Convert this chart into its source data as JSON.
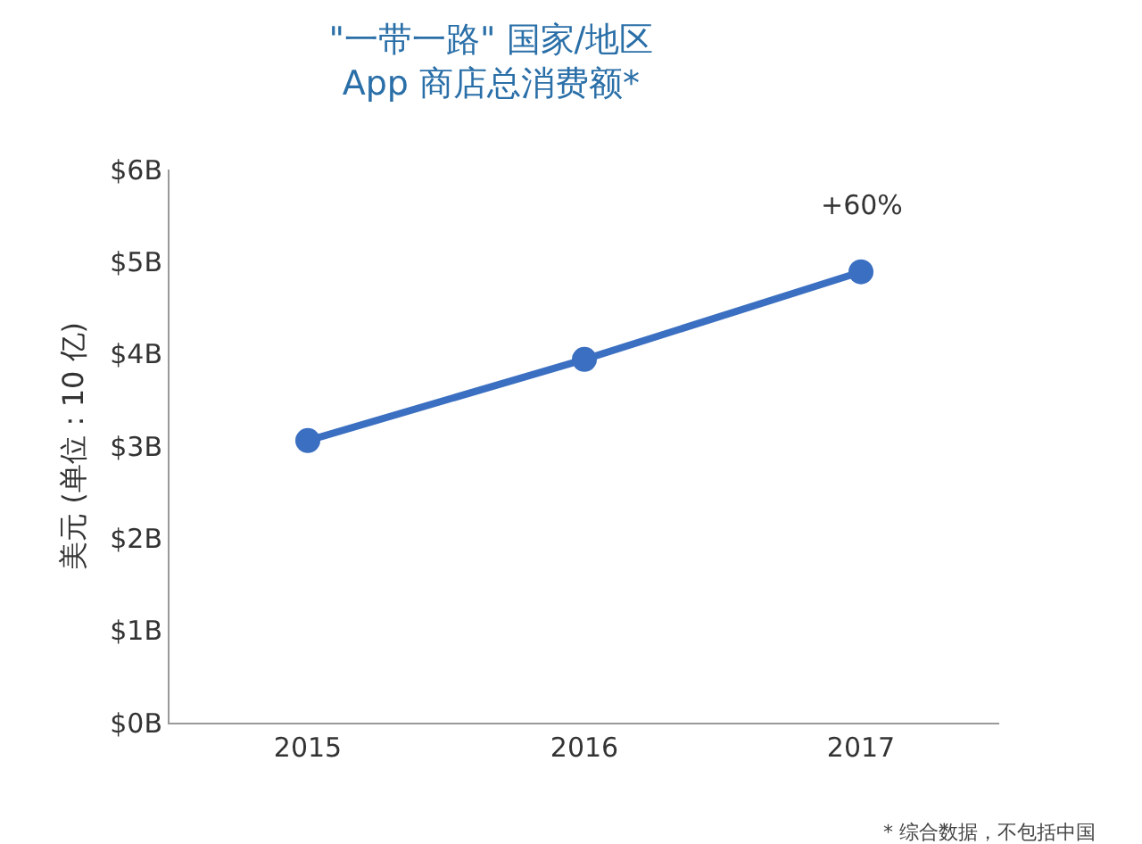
{
  "chart_data": {
    "type": "line",
    "title": "\"一带一路\" 国家/地区",
    "subtitle": "App 商店总消费额*",
    "ylabel": "美元 (单位：10 亿)",
    "categories": [
      "2015",
      "2016",
      "2017"
    ],
    "series": [
      {
        "color": "#3b6fc1",
        "values": [
          3.06,
          3.94,
          4.89
        ]
      }
    ],
    "ylim": [
      0,
      6
    ],
    "yticks": [
      {
        "value": 0,
        "label": "$0B"
      },
      {
        "value": 1,
        "label": "$1B"
      },
      {
        "value": 2,
        "label": "$2B"
      },
      {
        "value": 3,
        "label": "$3B"
      },
      {
        "value": 4,
        "label": "$4B"
      },
      {
        "value": 5,
        "label": "$5B"
      },
      {
        "value": 6,
        "label": "$6B"
      }
    ],
    "annotations": [
      "+60%",
      "* 综合数据，不包括中国"
    ],
    "grid": false,
    "marker": "circle",
    "line_style": "solid"
  }
}
